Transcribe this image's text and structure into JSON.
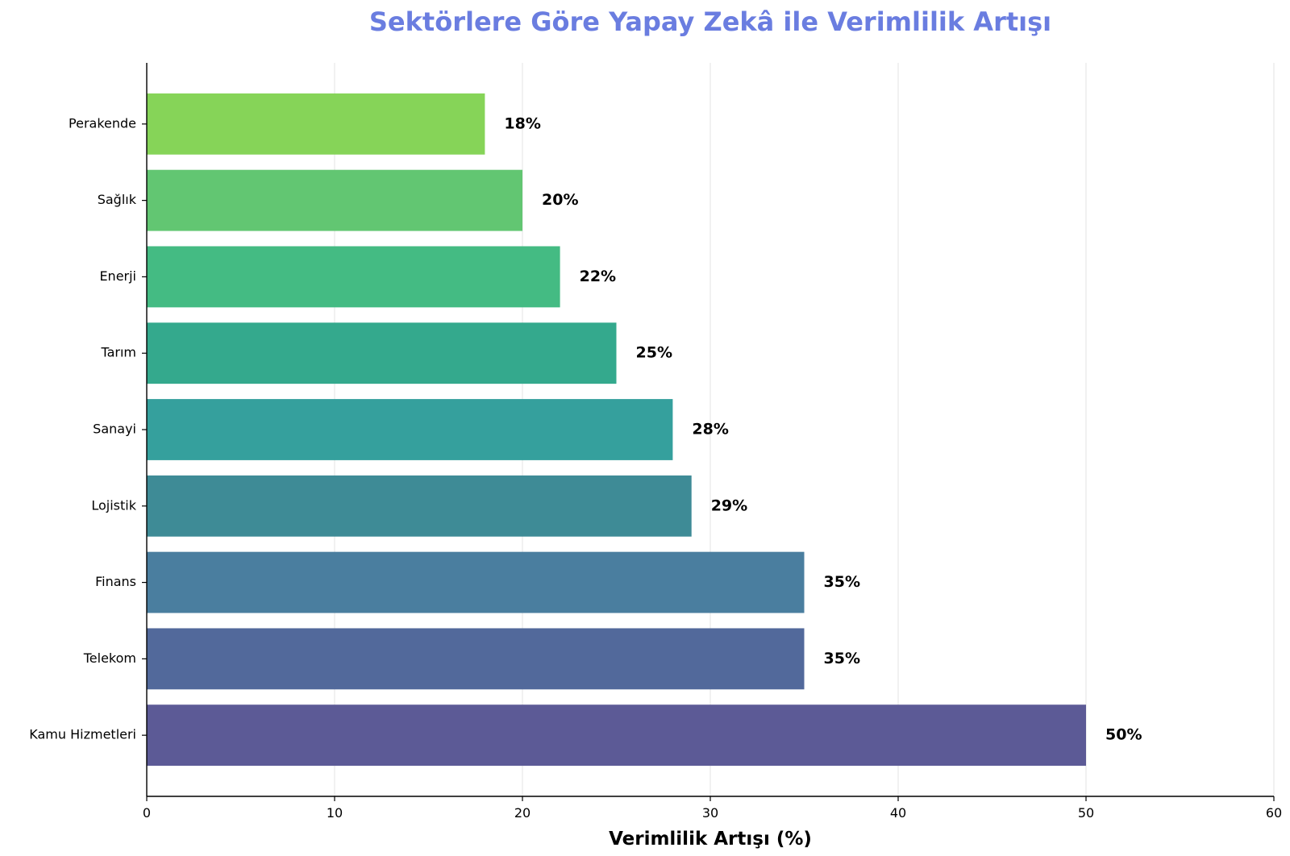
{
  "chart_data": {
    "type": "bar",
    "orientation": "horizontal",
    "title": "Sektörlere Göre Yapay Zekâ ile Verimlilik Artışı",
    "xlabel": "Verimlilik Artışı (%)",
    "ylabel": "",
    "xlim": [
      0,
      60
    ],
    "xticks": [
      0,
      10,
      20,
      30,
      40,
      50,
      60
    ],
    "grid": "x",
    "categories": [
      "Kamu Hizmetleri",
      "Telekom",
      "Finans",
      "Lojistik",
      "Sanayi",
      "Tarım",
      "Enerji",
      "Sağlık",
      "Perakende"
    ],
    "values": [
      50,
      35,
      35,
      29,
      28,
      25,
      22,
      20,
      18
    ],
    "value_labels": [
      "50%",
      "35%",
      "35%",
      "29%",
      "28%",
      "25%",
      "22%",
      "20%",
      "18%"
    ],
    "colors": [
      "#5c5a96",
      "#52699b",
      "#4a7e9f",
      "#3e8b96",
      "#35a09d",
      "#34a98d",
      "#44bb83",
      "#62c672",
      "#86d458"
    ],
    "title_color": "#6a7de0"
  }
}
